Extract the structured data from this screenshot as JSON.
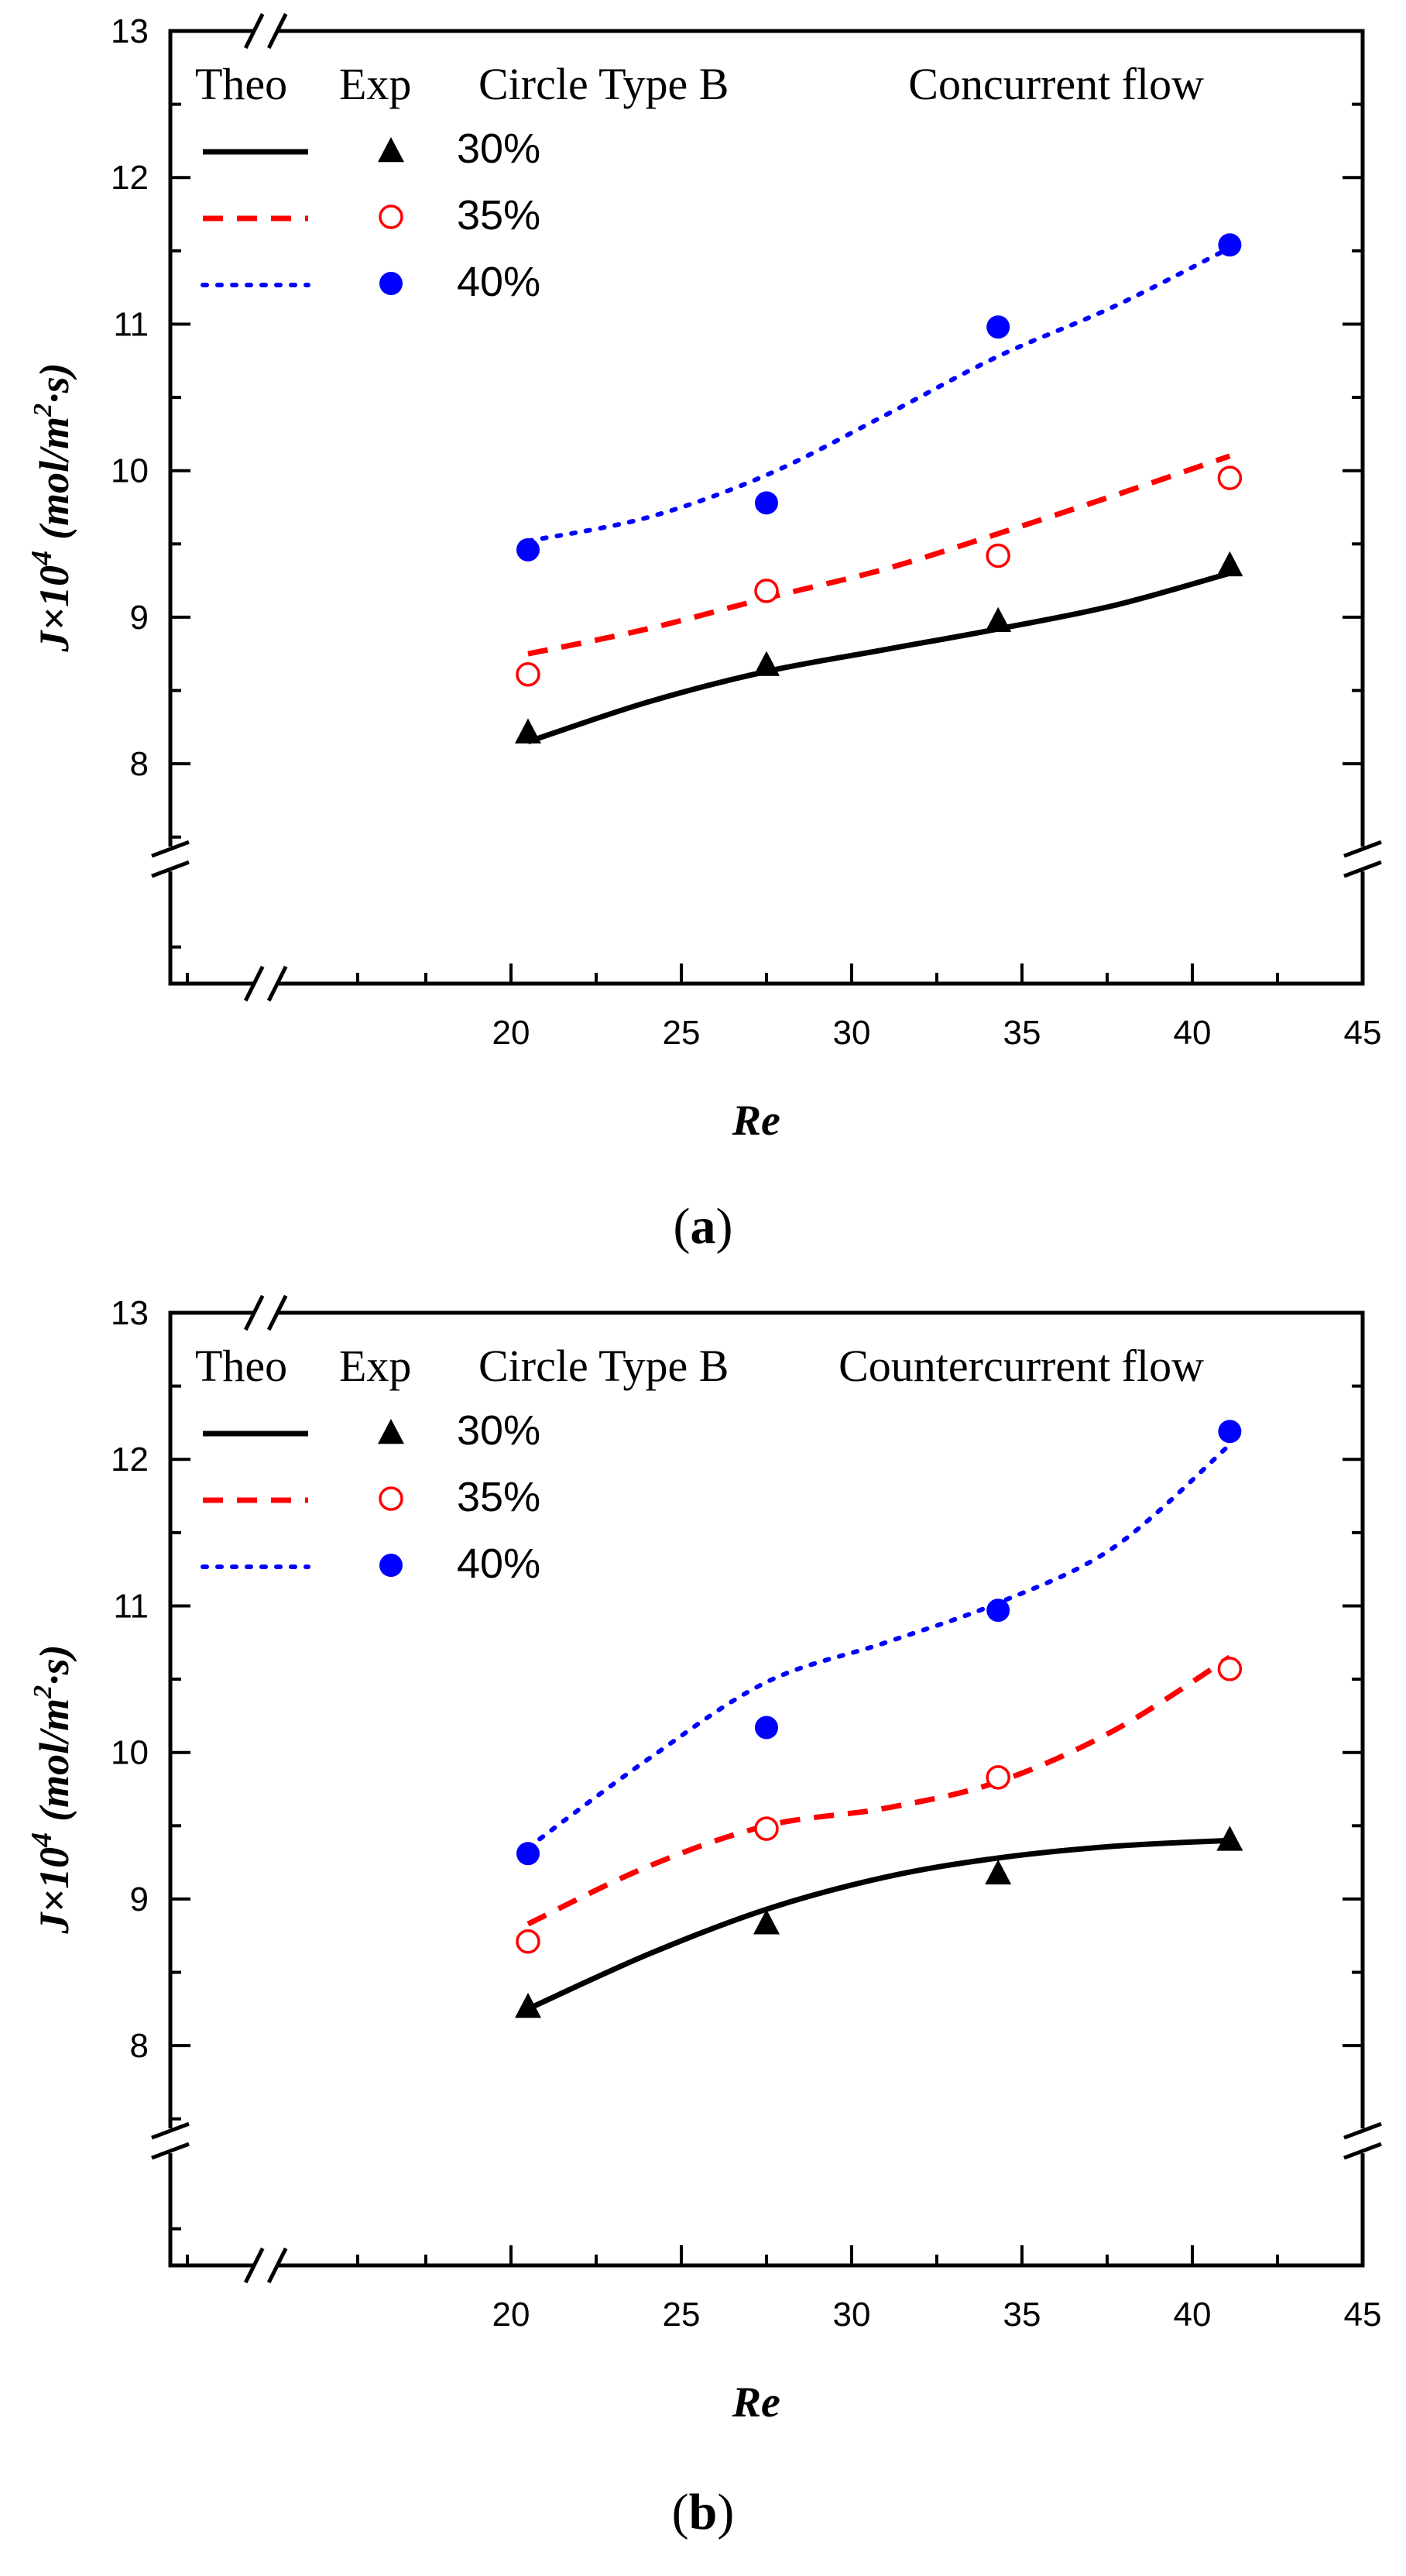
{
  "chart_data": [
    {
      "panel_label": "a",
      "type": "line",
      "title": "Circle Type B",
      "flow_label": "Concurrent flow",
      "xlabel": "Re",
      "ylabel_main": "J×10",
      "ylabel_exp": "4",
      "ylabel_unit_pre": "(mol/m",
      "ylabel_unit_exp": "2",
      "ylabel_unit_post": "·s)",
      "xlim": [
        10,
        45
      ],
      "ylim": [
        6.5,
        13
      ],
      "x_ticks": [
        20,
        25,
        30,
        35,
        40,
        45
      ],
      "y_ticks": [
        8,
        9,
        10,
        11,
        12,
        13
      ],
      "legend_headers": {
        "theo": "Theo",
        "exp": "Exp"
      },
      "series": [
        {
          "name": "30%",
          "color": "#000000",
          "line_style": "solid",
          "marker": "triangle",
          "theo": {
            "x": [
              20.5,
              24,
              27.5,
              31,
              34.3,
              37.7,
              41.1
            ],
            "y": [
              8.15,
              8.42,
              8.63,
              8.78,
              8.92,
              9.08,
              9.3
            ]
          },
          "exp": {
            "x": [
              20.5,
              27.5,
              34.3,
              41.1
            ],
            "y": [
              8.22,
              8.68,
              8.98,
              9.36
            ]
          }
        },
        {
          "name": "35%",
          "color": "#ff0000",
          "line_style": "dashed",
          "marker": "open-circle",
          "theo": {
            "x": [
              20.5,
              24,
              27.5,
              31,
              34.3,
              37.7,
              41.1
            ],
            "y": [
              8.75,
              8.92,
              9.13,
              9.33,
              9.57,
              9.83,
              10.1
            ]
          },
          "exp": {
            "x": [
              20.5,
              27.5,
              34.3,
              41.1
            ],
            "y": [
              8.61,
              9.18,
              9.42,
              9.95
            ]
          }
        },
        {
          "name": "40%",
          "color": "#0000ff",
          "line_style": "dotted",
          "marker": "filled-circle",
          "theo": {
            "x": [
              20.5,
              24,
              27.5,
              31,
              34.3,
              37.7,
              41.1
            ],
            "y": [
              9.52,
              9.68,
              9.97,
              10.38,
              10.78,
              11.12,
              11.52
            ]
          },
          "exp": {
            "x": [
              20.5,
              27.5,
              34.3,
              41.1
            ],
            "y": [
              9.46,
              9.78,
              10.98,
              11.54
            ]
          }
        }
      ]
    },
    {
      "panel_label": "b",
      "type": "line",
      "title": "Circle Type B",
      "flow_label": "Countercurrent flow",
      "xlabel": "Re",
      "ylabel_main": "J×10",
      "ylabel_exp": "4",
      "ylabel_unit_pre": "(mol/m",
      "ylabel_unit_exp": "2",
      "ylabel_unit_post": "·s)",
      "xlim": [
        10,
        45
      ],
      "ylim": [
        6.5,
        13
      ],
      "x_ticks": [
        20,
        25,
        30,
        35,
        40,
        45
      ],
      "y_ticks": [
        8,
        9,
        10,
        11,
        12,
        13
      ],
      "legend_headers": {
        "theo": "Theo",
        "exp": "Exp"
      },
      "series": [
        {
          "name": "30%",
          "color": "#000000",
          "line_style": "solid",
          "marker": "triangle",
          "theo": {
            "x": [
              20.5,
              24,
              27.5,
              31,
              34.3,
              37.7,
              41.1
            ],
            "y": [
              8.25,
              8.62,
              8.93,
              9.15,
              9.28,
              9.36,
              9.4
            ]
          },
          "exp": {
            "x": [
              20.5,
              27.5,
              34.3,
              41.1
            ],
            "y": [
              8.27,
              8.84,
              9.18,
              9.41
            ]
          }
        },
        {
          "name": "35%",
          "color": "#ff0000",
          "line_style": "dashed",
          "marker": "open-circle",
          "theo": {
            "x": [
              20.5,
              24,
              27.5,
              31,
              34.3,
              37.7,
              41.1
            ],
            "y": [
              8.83,
              9.22,
              9.5,
              9.62,
              9.8,
              10.15,
              10.65
            ]
          },
          "exp": {
            "x": [
              20.5,
              27.5,
              34.3,
              41.1
            ],
            "y": [
              8.71,
              9.48,
              9.83,
              10.57
            ]
          }
        },
        {
          "name": "40%",
          "color": "#0000ff",
          "line_style": "dotted",
          "marker": "filled-circle",
          "theo": {
            "x": [
              20.5,
              24,
              27.5,
              31,
              34.3,
              37.7,
              41.1
            ],
            "y": [
              9.35,
              9.95,
              10.48,
              10.75,
              11.02,
              11.4,
              12.1
            ]
          },
          "exp": {
            "x": [
              20.5,
              27.5,
              34.3,
              41.1
            ],
            "y": [
              9.31,
              10.17,
              10.97,
              12.19
            ]
          }
        }
      ]
    }
  ]
}
